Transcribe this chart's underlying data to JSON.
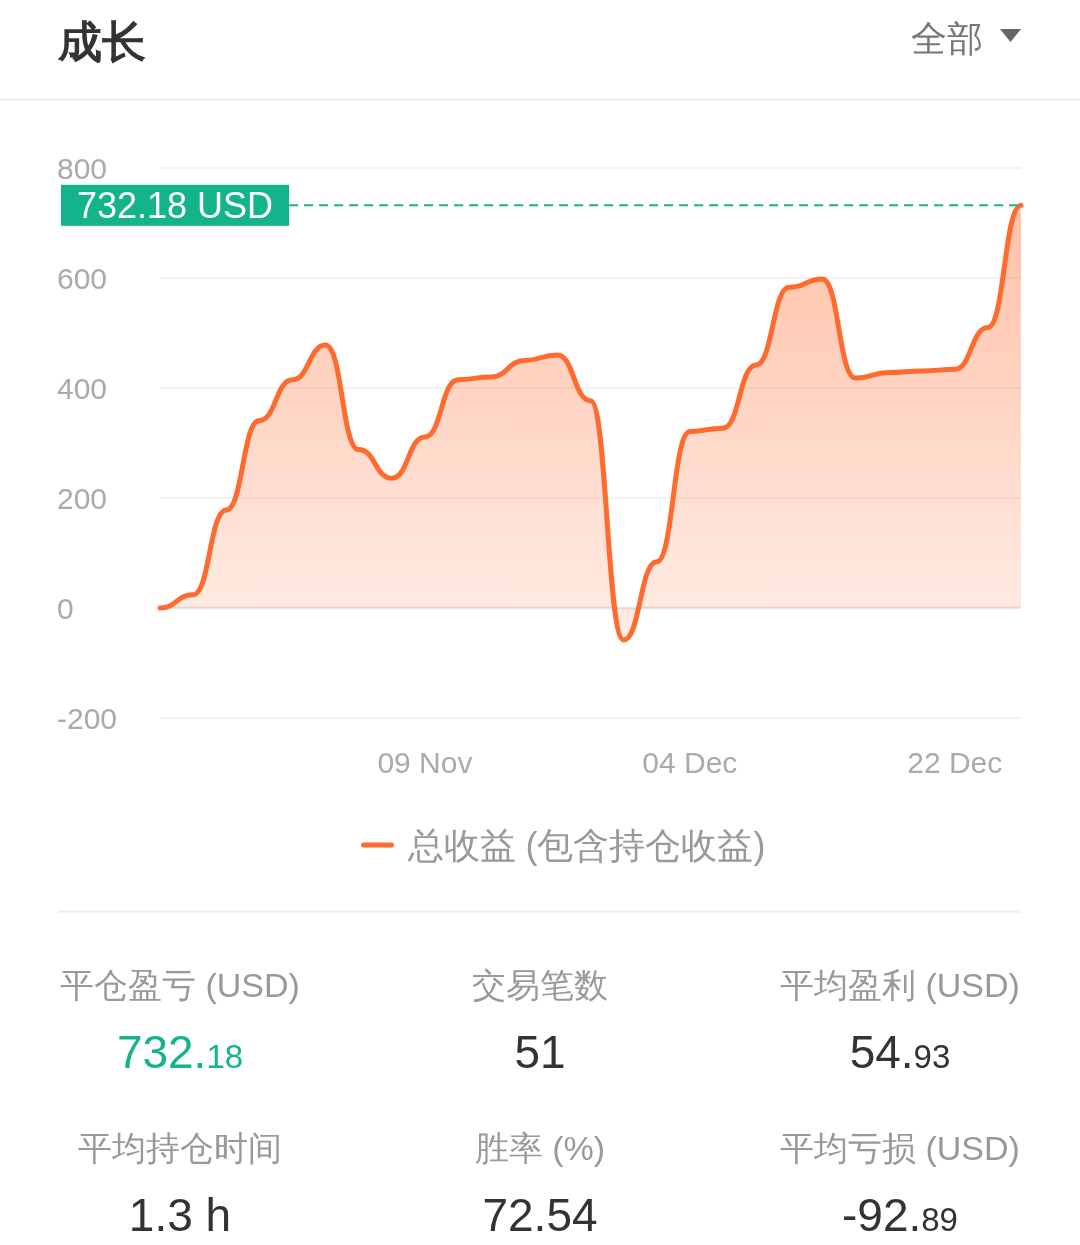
{
  "chart_data": [
    {
      "type": "area",
      "title": "成长",
      "annotations": [
        "全部"
      ],
      "categories": [
        null,
        null,
        null,
        null,
        null,
        null,
        null,
        null,
        "09 Nov",
        null,
        null,
        null,
        null,
        null,
        null,
        null,
        "04 Dec",
        null,
        null,
        null,
        null,
        null,
        null,
        null,
        "22 Dec",
        null,
        null
      ],
      "series": [
        {
          "name": "总收益 (包含持仓收益)",
          "color": "#ff6a2e",
          "values": [
            0,
            24,
            178,
            341,
            415,
            478,
            288,
            236,
            311,
            415,
            420,
            450,
            460,
            377,
            -58,
            84,
            321,
            327,
            442,
            583,
            598,
            418,
            428,
            431,
            434,
            510,
            732.18
          ]
        }
      ],
      "ylim": [
        -200,
        800
      ],
      "yticks": [
        -200,
        0,
        200,
        400,
        600,
        800
      ],
      "grid": "y",
      "legend": "bottom",
      "ref_lines": [
        {
          "axis": "y",
          "value": 732.18,
          "label": "732.18 USD",
          "color": "#13b38b",
          "line_style": "dashed"
        }
      ]
    },
    {
      "type": "other",
      "annotations": [
        "平仓盈亏 (USD)",
        "732.18",
        "交易笔数",
        "51",
        "平均盈利 (USD)",
        "54.93",
        "平均持仓时间",
        "1.3 h",
        "胜率 (%)",
        "72.54",
        "平均亏损 (USD)",
        "-92.89"
      ]
    }
  ]
}
